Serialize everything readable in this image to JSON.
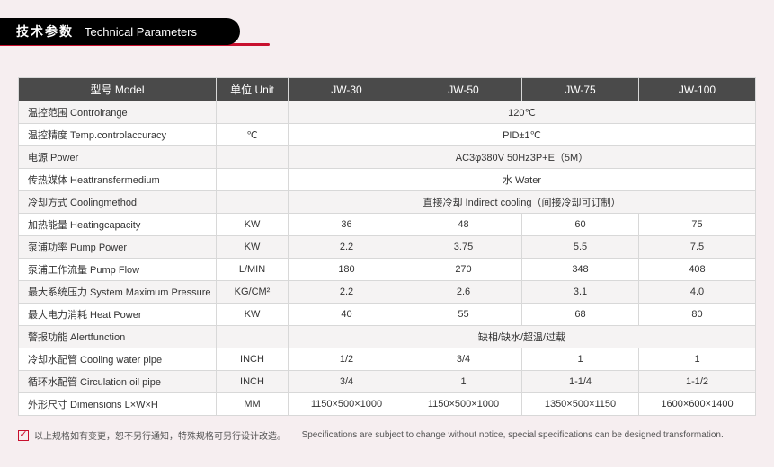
{
  "header": {
    "title_cn": "技术参数",
    "title_en": "Technical Parameters"
  },
  "colors": {
    "header_bg": "#000000",
    "accent": "#c8102e",
    "th_bg": "#4a4a4a",
    "row_odd": "#f5f3f3",
    "row_even": "#ffffff",
    "border": "#d8d8d8",
    "page_bg": "#f6eef0"
  },
  "columns": {
    "param": "型号 Model",
    "unit": "单位 Unit",
    "models": [
      "JW-30",
      "JW-50",
      "JW-75",
      "JW-100"
    ]
  },
  "rows": [
    {
      "label": "温控范围 Controlrange",
      "unit": "",
      "span": "120℃"
    },
    {
      "label": "温控精度 Temp.controlaccuracy",
      "unit": "℃",
      "span": "PID±1℃"
    },
    {
      "label": "电源 Power",
      "unit": "",
      "span": "AC3φ380V 50Hz3P+E（5M）"
    },
    {
      "label": "传热媒体 Heattransfermedium",
      "unit": "",
      "span": "水 Water"
    },
    {
      "label": "冷却方式 Coolingmethod",
      "unit": "",
      "span": "直接冷却 Indirect cooling（间接冷却可订制）"
    },
    {
      "label": "加热能量 Heatingcapacity",
      "unit": "KW",
      "cells": [
        "36",
        "48",
        "60",
        "75"
      ]
    },
    {
      "label": "泵浦功率 Pump Power",
      "unit": "KW",
      "cells": [
        "2.2",
        "3.75",
        "5.5",
        "7.5"
      ]
    },
    {
      "label": "泵浦工作流量 Pump Flow",
      "unit": "L/MIN",
      "cells": [
        "180",
        "270",
        "348",
        "408"
      ]
    },
    {
      "label": "最大系统压力 System Maximum Pressure",
      "unit": "KG/CM²",
      "cells": [
        "2.2",
        "2.6",
        "3.1",
        "4.0"
      ]
    },
    {
      "label": "最大电力消耗 Heat Power",
      "unit": "KW",
      "cells": [
        "40",
        "55",
        "68",
        "80"
      ]
    },
    {
      "label": "警报功能 Alertfunction",
      "unit": "",
      "span": "缺相/缺水/超温/过载"
    },
    {
      "label": "冷却水配管 Cooling water pipe",
      "unit": "INCH",
      "cells": [
        "1/2",
        "3/4",
        "1",
        "1"
      ]
    },
    {
      "label": "循环水配管 Circulation oil pipe",
      "unit": "INCH",
      "cells": [
        "3/4",
        "1",
        "1-1/4",
        "1-1/2"
      ]
    },
    {
      "label": "外形尺寸 Dimensions L×W×H",
      "unit": "MM",
      "cells": [
        "1150×500×1000",
        "1150×500×1000",
        "1350×500×1150",
        "1600×600×1400"
      ]
    }
  ],
  "footer": {
    "cn": "以上规格如有变更，恕不另行通知，特殊规格可另行设计改造。",
    "en": "Specifications are subject to change without notice, special specifications can be designed transformation."
  }
}
